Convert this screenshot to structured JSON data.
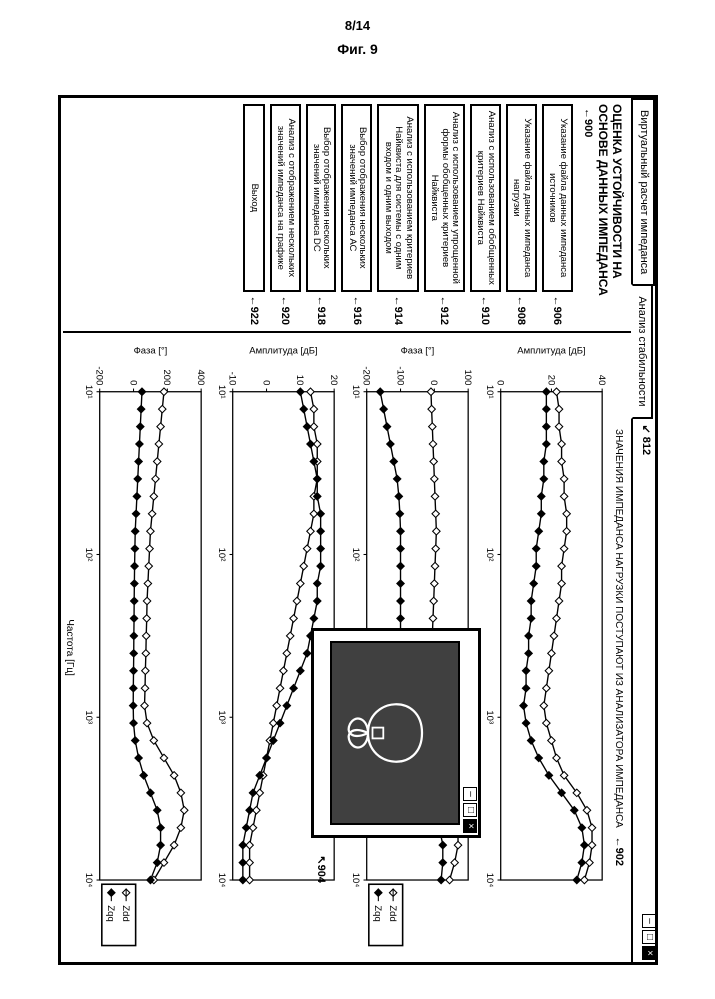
{
  "page_number": "8/14",
  "figure_label": "Фиг. 9",
  "tabs": {
    "tab1": "Виртуальный расчет импеданса",
    "tab2": "Анализ стабильности",
    "tab2_ref": "812"
  },
  "sidebar": {
    "title": "ОЦЕНКА УСТОЙЧИВОСТИ НА ОСНОВЕ ДАННЫХ ИМПЕДАНСА",
    "title_ref": "900",
    "items": [
      {
        "ref": "906",
        "label": "Указание файла данных импеданса источников"
      },
      {
        "ref": "908",
        "label": "Указание файла данных импеданса нагрузки"
      },
      {
        "ref": "910",
        "label": "Анализ с использованием обобщенных критериев Найквиста"
      },
      {
        "ref": "912",
        "label": "Анализ с использованием упрощенной формы обобщенных критериев Найквиста"
      },
      {
        "ref": "914",
        "label": "Анализ с использованием критериев Найквиста для системы с одним входом и одним выходом"
      },
      {
        "ref": "916",
        "label": "Выбор отображения нескольких значений импеданса АС"
      },
      {
        "ref": "918",
        "label": "Выбор отображения нескольких значений импеданса DC"
      },
      {
        "ref": "920",
        "label": "Анализ с отображением нескольких значений импеданса на графике"
      },
      {
        "ref": "922",
        "label": "Выход"
      }
    ]
  },
  "charts": {
    "title": "ЗНАЧЕНИЯ ИМПЕДАНСА НАГРУЗКИ ПОСТУПАЮТ ИЗ АНАЛИЗАТОРА ИМПЕДАНСА",
    "title_ref": "902",
    "popup_ref": "904",
    "xaxis_label": "Частота [Гц]",
    "legend": {
      "a": "Zdd",
      "b": "Zqq"
    },
    "panels": [
      {
        "ylabel": "Амплитуда [дБ]",
        "ylim": [
          0,
          40
        ],
        "yticks": [
          0,
          20,
          40
        ],
        "xticks": [
          "10¹",
          "10²",
          "10³",
          "10⁴"
        ],
        "series": {
          "a": [
            22,
            23,
            23,
            24,
            24,
            25,
            25,
            26,
            26,
            25,
            24,
            24,
            23,
            22,
            21,
            20,
            19,
            18,
            17,
            18,
            20,
            22,
            25,
            30,
            34,
            36,
            36,
            35,
            33
          ],
          "b": [
            18,
            18,
            18,
            18,
            17,
            17,
            16,
            16,
            15,
            14,
            14,
            13,
            12,
            12,
            11,
            11,
            10,
            10,
            9,
            10,
            12,
            15,
            19,
            24,
            29,
            32,
            33,
            32,
            30
          ]
        },
        "colors": {
          "a": "#000000",
          "b": "#000000"
        },
        "marker": {
          "a": "open",
          "b": "filled"
        }
      },
      {
        "ylabel": "Фаза [°]",
        "ylim": [
          -200,
          100
        ],
        "yticks": [
          -200,
          -100,
          0,
          100
        ],
        "xticks": [
          "10¹",
          "10²",
          "10³",
          "10⁴"
        ],
        "series": {
          "a": [
            -10,
            -8,
            -6,
            -4,
            -2,
            0,
            2,
            4,
            6,
            4,
            2,
            0,
            -2,
            -4,
            -6,
            -8,
            -10,
            -12,
            -14,
            -10,
            -5,
            5,
            20,
            40,
            60,
            70,
            70,
            60,
            45
          ],
          "b": [
            -160,
            -150,
            -140,
            -130,
            -120,
            -110,
            -105,
            -102,
            -100,
            -100,
            -100,
            -100,
            -100,
            -100,
            -100,
            -100,
            -100,
            -100,
            -100,
            -98,
            -90,
            -75,
            -55,
            -30,
            -5,
            15,
            25,
            25,
            20
          ]
        },
        "colors": {
          "a": "#000000",
          "b": "#000000"
        },
        "marker": {
          "a": "open",
          "b": "filled"
        },
        "show_legend": true
      },
      {
        "ylabel": "Амплитуда [дБ]",
        "ylim": [
          -10,
          20
        ],
        "yticks": [
          -10,
          0,
          10,
          20
        ],
        "xticks": [
          "10¹",
          "10²",
          "10³",
          "10⁴"
        ],
        "series": {
          "a": [
            13,
            14,
            14,
            15,
            15,
            15,
            14,
            14,
            13,
            12,
            11,
            10,
            9,
            8,
            7,
            6,
            5,
            4,
            3,
            2,
            1,
            0,
            -1,
            -2,
            -3,
            -4,
            -5,
            -5,
            -5
          ],
          "b": [
            10,
            11,
            12,
            13,
            14,
            15,
            15,
            16,
            16,
            16,
            16,
            15,
            15,
            14,
            13,
            12,
            10,
            8,
            6,
            4,
            2,
            0,
            -2,
            -4,
            -5,
            -6,
            -7,
            -7,
            -7
          ]
        },
        "colors": {
          "a": "#000000",
          "b": "#000000"
        },
        "marker": {
          "a": "open",
          "b": "filled"
        }
      },
      {
        "ylabel": "Фаза [°]",
        "ylim": [
          -200,
          400
        ],
        "yticks": [
          -200,
          0,
          200,
          400
        ],
        "xticks": [
          "10¹",
          "10²",
          "10³",
          "10⁴"
        ],
        "series": {
          "a": [
            180,
            170,
            160,
            150,
            140,
            130,
            120,
            110,
            100,
            95,
            90,
            85,
            80,
            78,
            75,
            73,
            70,
            68,
            65,
            80,
            120,
            180,
            240,
            280,
            300,
            280,
            240,
            180,
            120
          ],
          "b": [
            50,
            45,
            40,
            35,
            30,
            25,
            20,
            15,
            10,
            8,
            6,
            5,
            4,
            3,
            2,
            1,
            0,
            -1,
            -2,
            0,
            10,
            30,
            60,
            100,
            140,
            160,
            160,
            140,
            100
          ]
        },
        "colors": {
          "a": "#000000",
          "b": "#000000"
        },
        "marker": {
          "a": "open",
          "b": "filled"
        },
        "show_legend": true
      }
    ]
  }
}
